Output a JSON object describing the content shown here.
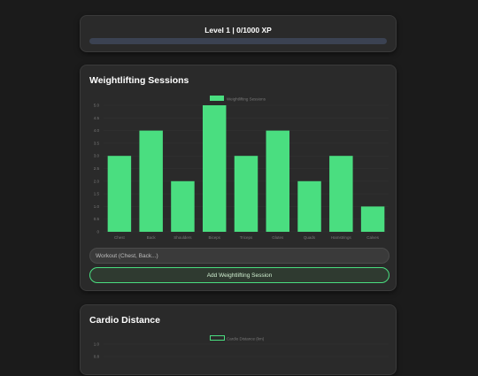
{
  "level": {
    "label": "Level 1 | 0/1000 XP",
    "progress_fraction": 0.0
  },
  "weightlifting": {
    "title": "Weightlifting Sessions",
    "input_placeholder": "Workout (Chest, Back...)",
    "input_value": "",
    "add_button_label": "Add Weightlifting Session"
  },
  "cardio": {
    "title": "Cardio Distance"
  },
  "colors": {
    "accent": "#4ade80",
    "card_bg": "#2a2a2a",
    "page_bg": "#1b1b1b",
    "xp_track": "#3b4252"
  },
  "chart_data": [
    {
      "type": "bar",
      "categories": [
        "Chest",
        "Back",
        "Shoulders",
        "Biceps",
        "Triceps",
        "Glutes",
        "Quads",
        "Hamstrings",
        "Calves"
      ],
      "series": [
        {
          "name": "Weightlifting Sessions",
          "values": [
            3,
            4,
            2,
            5,
            3,
            4,
            2,
            3,
            1
          ],
          "color": "#4ade80"
        }
      ],
      "ylim": [
        0,
        5
      ],
      "yticks": [
        "0",
        "0.5",
        "1.0",
        "1.5",
        "2.0",
        "2.5",
        "3.0",
        "3.5",
        "4.0",
        "4.5",
        "5.0"
      ],
      "legend_position": "top-center",
      "grid": true
    },
    {
      "type": "line",
      "series": [
        {
          "name": "Cardio Distance (km)",
          "values": [],
          "color": "#4ade80"
        }
      ],
      "yticks_visible": [
        "1.0",
        "0.8"
      ],
      "legend_position": "top-center",
      "grid": true
    }
  ]
}
